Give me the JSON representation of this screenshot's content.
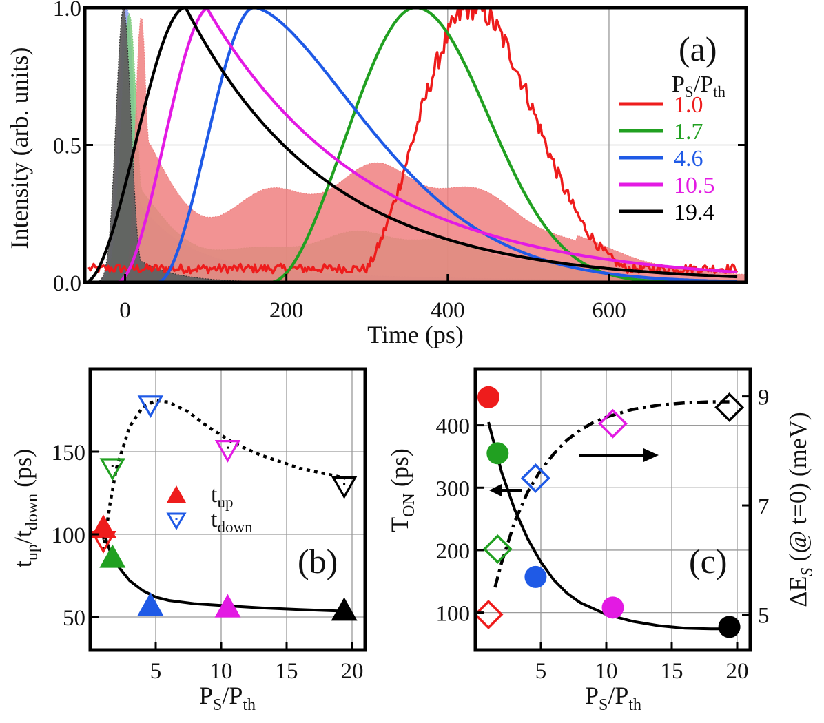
{
  "chart_data": [
    {
      "panel": "(a)",
      "type": "line",
      "xlabel": "Time (ps)",
      "ylabel": "Intensity (arb. units)",
      "xlim": [
        -50,
        770
      ],
      "ylim": [
        0,
        1.0
      ],
      "xticks": [
        0,
        200,
        400,
        600
      ],
      "yticks": [
        0.0,
        0.5,
        1.0
      ],
      "ytick_labels": [
        "0.0",
        "0.5",
        "1.0"
      ],
      "grid": true,
      "legend_title": "P_S/P_th",
      "legend_title_main_1": "P",
      "legend_title_sub_1": "S",
      "legend_title_slash": "/P",
      "legend_title_sub_2": "th",
      "series": [
        {
          "name": "1.0",
          "color": "#ee1c1c",
          "rise_ps": 350,
          "peak_ps": 430,
          "fall_ps": 560,
          "baseline": 0.05,
          "noisy": true
        },
        {
          "name": "1.7",
          "color": "#21a021",
          "rise_ps": 250,
          "peak_ps": 360,
          "fall_ps": 510,
          "baseline": 0.0,
          "noisy": false
        },
        {
          "name": "4.6",
          "color": "#1f5ae6",
          "rise_ps": 110,
          "peak_ps": 160,
          "fall_ps": 430,
          "baseline": 0.0,
          "noisy": false
        },
        {
          "name": "10.5",
          "color": "#e31ae3",
          "rise_ps": 60,
          "peak_ps": 105,
          "fall_ps": 300,
          "baseline": 0.0,
          "noisy": false
        },
        {
          "name": "19.4",
          "color": "#000000",
          "rise_ps": 20,
          "peak_ps": 75,
          "fall_ps": 200,
          "baseline": 0.0,
          "noisy": false
        }
      ],
      "filled_pump_traces": [
        {
          "name": "pump 1.0",
          "color": "#f08080",
          "peak_ps": 0,
          "tail": "oscillating"
        },
        {
          "name": "pump 1.7",
          "color": "#7fcc7f",
          "peak_ps": 0,
          "tail": "oscillating"
        },
        {
          "name": "pump 4.6",
          "color": "#8ea8f2",
          "peak_ps": 0,
          "tail": "decaying"
        },
        {
          "name": "pump 10.5",
          "color": "#f2a6f2",
          "peak_ps": 0,
          "tail": "decaying"
        },
        {
          "name": "pump 19.4",
          "color": "#606060",
          "peak_ps": 0,
          "tail": "decaying"
        }
      ]
    },
    {
      "panel": "(b)",
      "type": "scatter",
      "xlabel": "P_S/P_th",
      "xlabel_main_1": "P",
      "xlabel_sub_1": "S",
      "xlabel_slash": "/P",
      "xlabel_sub_2": "th",
      "ylabel": "t_up/t_down (ps)",
      "ylabel_main_1": "t",
      "ylabel_sub_1": "up",
      "ylabel_slash": "/t",
      "ylabel_sub_2": "down",
      "ylabel_units": " (ps)",
      "xlim": [
        0,
        21
      ],
      "ylim": [
        30,
        200
      ],
      "xticks": [
        5,
        10,
        15,
        20
      ],
      "yticks": [
        50,
        100,
        150
      ],
      "grid": true,
      "legend": [
        {
          "main": "t",
          "sub": "up",
          "marker": "filled-triangle-up"
        },
        {
          "main": "t",
          "sub": "down",
          "marker": "open-triangle-down"
        }
      ],
      "series": [
        {
          "name": "t_up",
          "x": [
            1.0,
            1.7,
            4.6,
            10.5,
            19.4
          ],
          "y": [
            104,
            86,
            57,
            56,
            54
          ],
          "colors": [
            "#ee1c1c",
            "#21a021",
            "#1f5ae6",
            "#e31ae3",
            "#000000"
          ]
        },
        {
          "name": "t_down",
          "x": [
            1.0,
            1.7,
            4.6,
            10.5,
            19.4
          ],
          "y": [
            96,
            140,
            178,
            151,
            129
          ],
          "colors": [
            "#ee1c1c",
            "#21a021",
            "#1f5ae6",
            "#e31ae3",
            "#000000"
          ]
        }
      ],
      "fit_up": {
        "x": [
          1.0,
          1.5,
          2.0,
          3.0,
          4.0,
          5.0,
          6.0,
          8.0,
          10.0,
          13.0,
          16.0,
          19.5
        ],
        "y": [
          102,
          90,
          82,
          72,
          66,
          62,
          60,
          58,
          57,
          55.5,
          54.5,
          53.5
        ]
      },
      "fit_down": {
        "x": [
          1.0,
          1.5,
          2.0,
          3.0,
          4.0,
          5.0,
          6.0,
          7.5,
          9.0,
          11.0,
          13.0,
          16.0,
          19.5
        ],
        "y": [
          90,
          118,
          140,
          165,
          177,
          181,
          180,
          174,
          165,
          155,
          148,
          140,
          134
        ]
      }
    },
    {
      "panel": "(c)",
      "type": "scatter",
      "xlabel": "P_S/P_th",
      "xlabel_main_1": "P",
      "xlabel_sub_1": "S",
      "xlabel_slash": "/P",
      "xlabel_sub_2": "th",
      "ylabel": "T_ON (ps)",
      "ylabel_main": "T",
      "ylabel_sub": "ON",
      "ylabel_units": " (ps)",
      "y2label": "ΔE_S (@ t=0) (meV)",
      "y2label_main": "ΔE",
      "y2label_sub": "S",
      "y2label_rest": " (@ t=0) (meV)",
      "xlim": [
        0,
        21
      ],
      "ylim": [
        40,
        490
      ],
      "y2lim": [
        4.35,
        9.5
      ],
      "xticks": [
        5,
        10,
        15,
        20
      ],
      "yticks": [
        100,
        200,
        300,
        400
      ],
      "y2ticks": [
        5,
        7,
        9
      ],
      "grid": true,
      "series": [
        {
          "name": "T_ON",
          "axis": "left",
          "x": [
            1.0,
            1.7,
            4.6,
            10.5,
            19.4
          ],
          "y": [
            445,
            355,
            157,
            108,
            77
          ],
          "colors": [
            "#ee1c1c",
            "#21a021",
            "#1f5ae6",
            "#e31ae3",
            "#000000"
          ]
        },
        {
          "name": "ΔE_S",
          "axis": "right",
          "x": [
            1.0,
            1.7,
            4.6,
            10.5,
            19.4
          ],
          "y": [
            5.0,
            6.2,
            7.5,
            8.5,
            8.8
          ],
          "colors": [
            "#ee1c1c",
            "#21a021",
            "#1f5ae6",
            "#e31ae3",
            "#000000"
          ]
        }
      ],
      "fit_ton": {
        "x": [
          1.0,
          1.5,
          2.0,
          3.0,
          4.0,
          5.0,
          6.0,
          7.0,
          8.0,
          10.0,
          12.0,
          14.0,
          16.0,
          18.0,
          19.5
        ],
        "y": [
          405,
          365,
          325,
          265,
          218,
          181,
          152,
          131,
          116,
          97,
          86,
          79,
          75,
          74,
          74
        ]
      },
      "fit_de": {
        "x": [
          1.5,
          2.0,
          3.0,
          4.0,
          5.0,
          6.0,
          7.0,
          8.0,
          9.0,
          10.0,
          12.0,
          14.0,
          16.0,
          18.0,
          19.4
        ],
        "y": [
          5.5,
          5.95,
          6.7,
          7.25,
          7.65,
          7.95,
          8.2,
          8.38,
          8.52,
          8.62,
          8.76,
          8.84,
          8.88,
          8.9,
          8.9
        ]
      }
    }
  ]
}
